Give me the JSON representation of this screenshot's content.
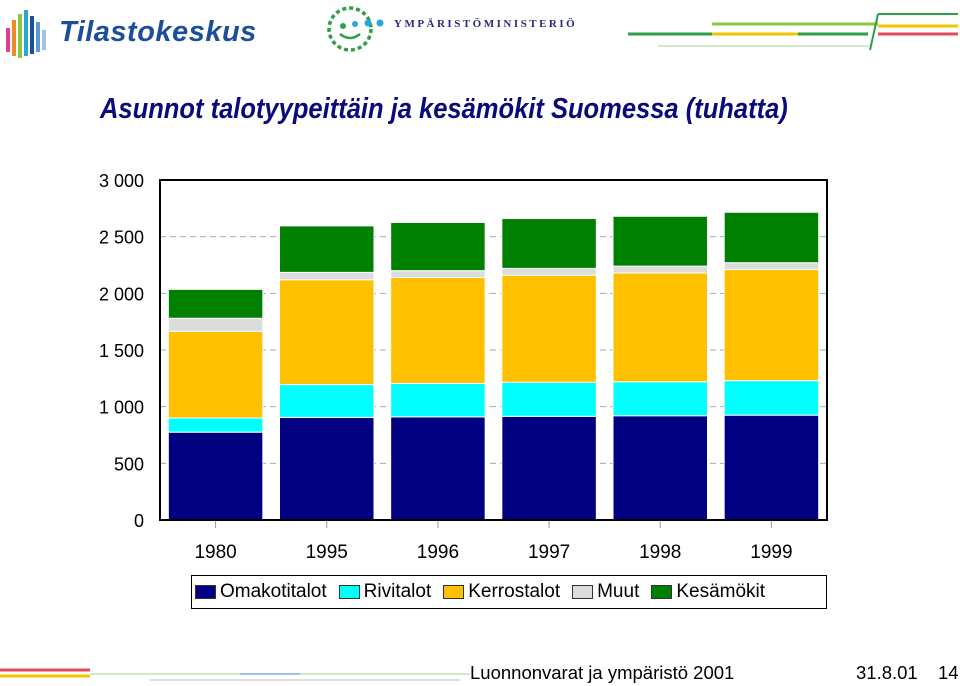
{
  "header": {
    "logo_left": "Tilastokeskus",
    "logo_right": "YMPÄRISTÖMINISTERIÖ"
  },
  "colors": {
    "title": "#0a0a78",
    "omakotitalot": "#000080",
    "rivitalot": "#00ffff",
    "kerrostalot": "#ffc000",
    "muut": "#dcdcdc",
    "kesamokit": "#008000"
  },
  "chart_data": {
    "type": "bar",
    "stacked": true,
    "title": "Asunnot talotyypeittäin ja kesämökit Suomessa (tuhatta)",
    "categories": [
      "1980",
      "1995",
      "1996",
      "1997",
      "1998",
      "1999"
    ],
    "series": [
      {
        "name": "Omakotitalot",
        "values": [
          775,
          905,
          910,
          915,
          920,
          925
        ]
      },
      {
        "name": "Rivitalot",
        "values": [
          125,
          290,
          295,
          300,
          300,
          305
        ]
      },
      {
        "name": "Kerrostalot",
        "values": [
          765,
          925,
          935,
          945,
          960,
          980
        ]
      },
      {
        "name": "Muut",
        "values": [
          115,
          65,
          60,
          60,
          60,
          60
        ]
      },
      {
        "name": "Kesämökit",
        "values": [
          255,
          410,
          425,
          440,
          440,
          445
        ]
      }
    ],
    "ylim": [
      0,
      3000
    ],
    "yticks": [
      "0",
      "500",
      "1 000",
      "1 500",
      "2 000",
      "2 500",
      "3 000"
    ],
    "grid": true,
    "legend_position": "bottom"
  },
  "footer": {
    "text": "Luonnonvarat ja ympäristö 2001",
    "date": "31.8.01",
    "page": "14"
  }
}
